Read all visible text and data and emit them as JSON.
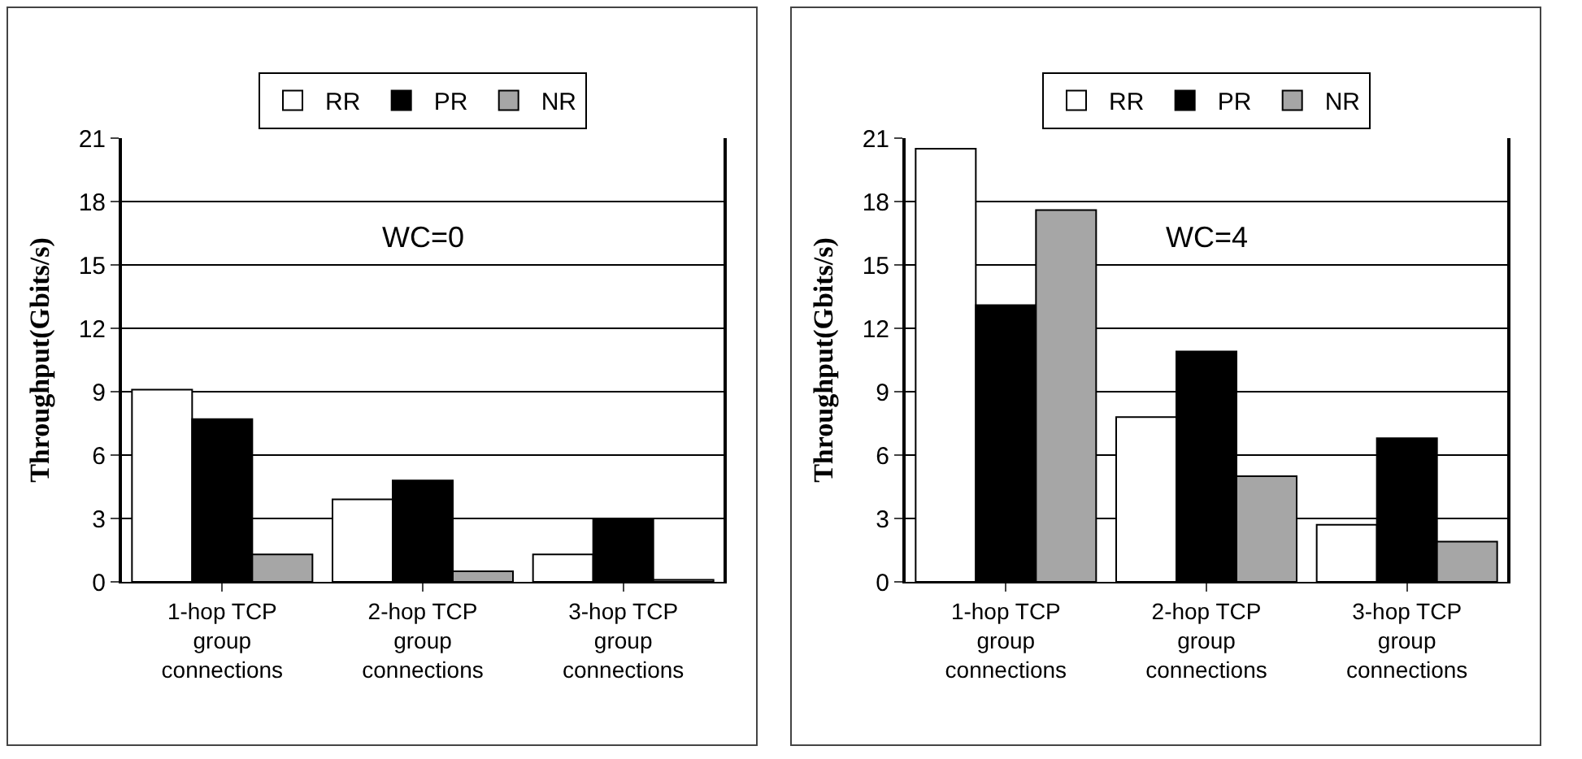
{
  "chart_data": [
    {
      "type": "bar",
      "ylabel": "Throughput(Gbits/s)",
      "annotations": [
        "WC=0"
      ],
      "categories": [
        "1-hop TCP group connections",
        "2-hop TCP group connections",
        "3-hop TCP group connections"
      ],
      "series": [
        {
          "name": "RR",
          "color": "#ffffff",
          "values": [
            9.1,
            3.9,
            1.3
          ]
        },
        {
          "name": "PR",
          "color": "#000000",
          "values": [
            7.7,
            4.8,
            3.0
          ]
        },
        {
          "name": "NR",
          "color": "#a6a6a6",
          "values": [
            1.3,
            0.5,
            0.1
          ]
        }
      ],
      "ylim": [
        0,
        21
      ],
      "yticks": [
        0,
        3,
        6,
        9,
        12,
        15,
        18,
        21
      ],
      "grid": "y",
      "legend": "top"
    },
    {
      "type": "bar",
      "ylabel": "Throughput(Gbits/s)",
      "annotations": [
        "WC=4"
      ],
      "categories": [
        "1-hop TCP group connections",
        "2-hop TCP group connections",
        "3-hop TCP group connections"
      ],
      "series": [
        {
          "name": "RR",
          "color": "#ffffff",
          "values": [
            20.5,
            7.8,
            2.7
          ]
        },
        {
          "name": "PR",
          "color": "#000000",
          "values": [
            13.1,
            10.9,
            6.8
          ]
        },
        {
          "name": "NR",
          "color": "#a6a6a6",
          "values": [
            17.6,
            5.0,
            1.9
          ]
        }
      ],
      "ylim": [
        0,
        21
      ],
      "yticks": [
        0,
        3,
        6,
        9,
        12,
        15,
        18,
        21
      ],
      "grid": "y",
      "legend": "top"
    }
  ]
}
